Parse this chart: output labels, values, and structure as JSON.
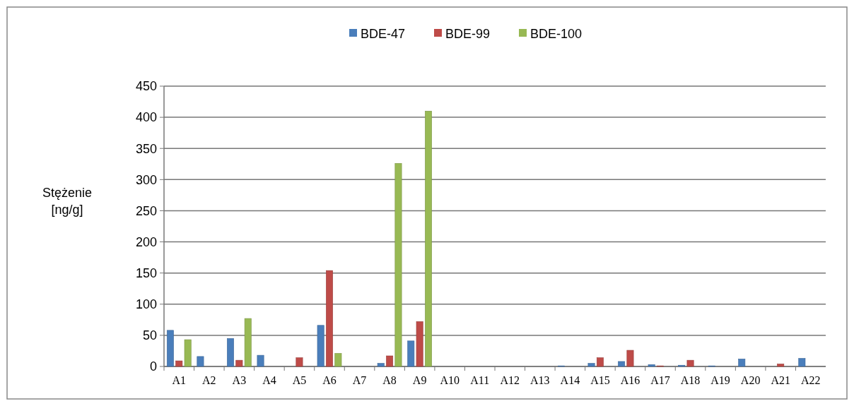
{
  "chart_data": {
    "type": "bar",
    "ylabel": "Stężenie [ng/g]",
    "categories": [
      "A1",
      "A2",
      "A3",
      "A4",
      "A5",
      "A6",
      "A7",
      "A8",
      "A9",
      "A10",
      "A11",
      "A12",
      "A13",
      "A14",
      "A15",
      "A16",
      "A17",
      "A18",
      "A19",
      "A20",
      "A21",
      "A22"
    ],
    "series": [
      {
        "name": "BDE-47",
        "color": "#4a7ebb",
        "values": [
          58,
          16,
          45,
          18,
          null,
          66,
          null,
          5,
          41,
          null,
          null,
          null,
          null,
          1,
          5,
          8,
          3,
          2,
          1,
          12,
          null,
          13
        ]
      },
      {
        "name": "BDE-99",
        "color": "#be4b48",
        "values": [
          9,
          null,
          10,
          null,
          14,
          154,
          null,
          17,
          72,
          null,
          null,
          null,
          null,
          null,
          14,
          26,
          1,
          10,
          null,
          null,
          4,
          null
        ]
      },
      {
        "name": "BDE-100",
        "color": "#98b954",
        "values": [
          43,
          null,
          77,
          null,
          null,
          21,
          null,
          326,
          410,
          null,
          null,
          null,
          null,
          null,
          null,
          null,
          null,
          null,
          null,
          null,
          null,
          null
        ]
      }
    ],
    "ylim": [
      0,
      450
    ],
    "yticks": [
      0,
      50,
      100,
      150,
      200,
      250,
      300,
      350,
      400,
      450
    ],
    "grid": "y",
    "legend": "top"
  }
}
